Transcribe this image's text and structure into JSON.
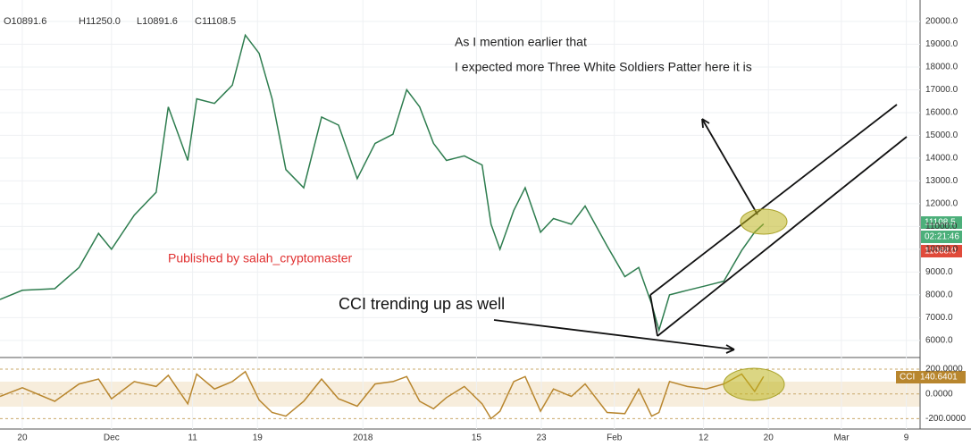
{
  "chart_data": [
    {
      "type": "line",
      "ohlc": [
        "O10891.6",
        "H11250.0",
        "L10891.6",
        "C11108.5"
      ],
      "annotations": [
        "As I mention earlier that",
        "I expected more Three White Soldiers Patter here it is",
        "Published by salah_cryptomaster",
        "CCI trending up as well"
      ],
      "price_labels": [
        "11108.5",
        "02:21:46",
        "11068.0"
      ],
      "xlim": [
        -2.75,
        110.7
      ],
      "xticks": [
        {
          "value": 0,
          "label": "20"
        },
        {
          "value": 11,
          "label": "Dec"
        },
        {
          "value": 21,
          "label": "11"
        },
        {
          "value": 29,
          "label": "19"
        },
        {
          "value": 42,
          "label": "2018"
        },
        {
          "value": 56,
          "label": "15"
        },
        {
          "value": 64,
          "label": "23"
        },
        {
          "value": 73,
          "label": "Feb"
        },
        {
          "value": 84,
          "label": "12"
        },
        {
          "value": 92,
          "label": "20"
        },
        {
          "value": 101,
          "label": "Mar"
        },
        {
          "value": 109,
          "label": "9"
        }
      ],
      "ylim": [
        5250,
        20940
      ],
      "yticks": [
        {
          "value": 6000,
          "label": "6000.0"
        },
        {
          "value": 7000,
          "label": "7000.0"
        },
        {
          "value": 8000,
          "label": "8000.0"
        },
        {
          "value": 9000,
          "label": "9000.0"
        },
        {
          "value": 10000,
          "label": "10000.0"
        },
        {
          "value": 11000,
          "label": "11000.0"
        },
        {
          "value": 12000,
          "label": "12000.0"
        },
        {
          "value": 13000,
          "label": "13000.0"
        },
        {
          "value": 14000,
          "label": "14000.0"
        },
        {
          "value": 15000,
          "label": "15000.0"
        },
        {
          "value": 16000,
          "label": "16000.0"
        },
        {
          "value": 17000,
          "label": "17000.0"
        },
        {
          "value": 18000,
          "label": "18000.0"
        },
        {
          "value": 19000,
          "label": "19000.0"
        },
        {
          "value": 20000,
          "label": "20000.0"
        }
      ],
      "grid": true,
      "x": [
        -2.75,
        0,
        4,
        7,
        9.4,
        11,
        13.8,
        16.5,
        18,
        20.4,
        21.5,
        23.7,
        25.9,
        27.5,
        29.2,
        30.8,
        32.5,
        34.7,
        36.9,
        39,
        41.3,
        43.5,
        45.7,
        47.4,
        49,
        50.7,
        52.3,
        54.5,
        56.7,
        57.8,
        58.9,
        60.6,
        62,
        63.9,
        65.5,
        67.7,
        69.4,
        72.1,
        74.3,
        76,
        77.6,
        78.5,
        79.8,
        82,
        84.3,
        86.5,
        88.7,
        90.3,
        91.4
      ],
      "series": [
        {
          "color": "#2e7d4f",
          "values": [
            7800,
            8200,
            8270,
            9200,
            10700,
            10000,
            11500,
            12500,
            16250,
            13900,
            16600,
            16400,
            17200,
            19400,
            18600,
            16600,
            13500,
            12700,
            15800,
            15450,
            13100,
            14650,
            15050,
            17000,
            16250,
            14650,
            13900,
            14100,
            13700,
            11100,
            10000,
            11700,
            12700,
            10750,
            11350,
            11100,
            11900,
            10150,
            8800,
            9200,
            7600,
            6450,
            8000,
            8200,
            8400,
            8600,
            9950,
            10750,
            11108.5
          ]
        }
      ]
    },
    {
      "type": "line",
      "name": "CCI",
      "last_label": "140.6401",
      "ylim": [
        -284,
        294
      ],
      "yticks": [
        {
          "value": 200,
          "label": "200.0000"
        },
        {
          "value": 0,
          "label": "0.0000"
        },
        {
          "value": -200,
          "label": "-200.0000"
        }
      ],
      "x": [
        -2.75,
        0,
        4,
        7,
        9.4,
        11,
        13.8,
        16.5,
        18,
        20.4,
        21.5,
        23.7,
        25.9,
        27.5,
        29.2,
        30.8,
        32.5,
        34.7,
        36.9,
        39,
        41.3,
        43.5,
        45.7,
        47.4,
        49,
        50.7,
        52.3,
        54.5,
        56.7,
        57.8,
        58.9,
        60.6,
        62,
        63.9,
        65.5,
        67.7,
        69.4,
        72.1,
        74.3,
        76,
        77.6,
        78.5,
        79.8,
        82,
        84.3,
        86.5,
        88.7,
        90.3,
        91.4
      ],
      "series": [
        {
          "color": "#b8862e",
          "values": [
            -20,
            50,
            -60,
            80,
            120,
            -40,
            100,
            60,
            150,
            -80,
            160,
            40,
            100,
            180,
            -50,
            -150,
            -180,
            -60,
            120,
            -40,
            -100,
            80,
            100,
            140,
            -60,
            -120,
            -30,
            60,
            -80,
            -200,
            -140,
            100,
            140,
            -140,
            40,
            -20,
            80,
            -150,
            -160,
            40,
            -180,
            -150,
            100,
            60,
            40,
            80,
            160,
            20,
            140.6401
          ]
        }
      ]
    }
  ]
}
